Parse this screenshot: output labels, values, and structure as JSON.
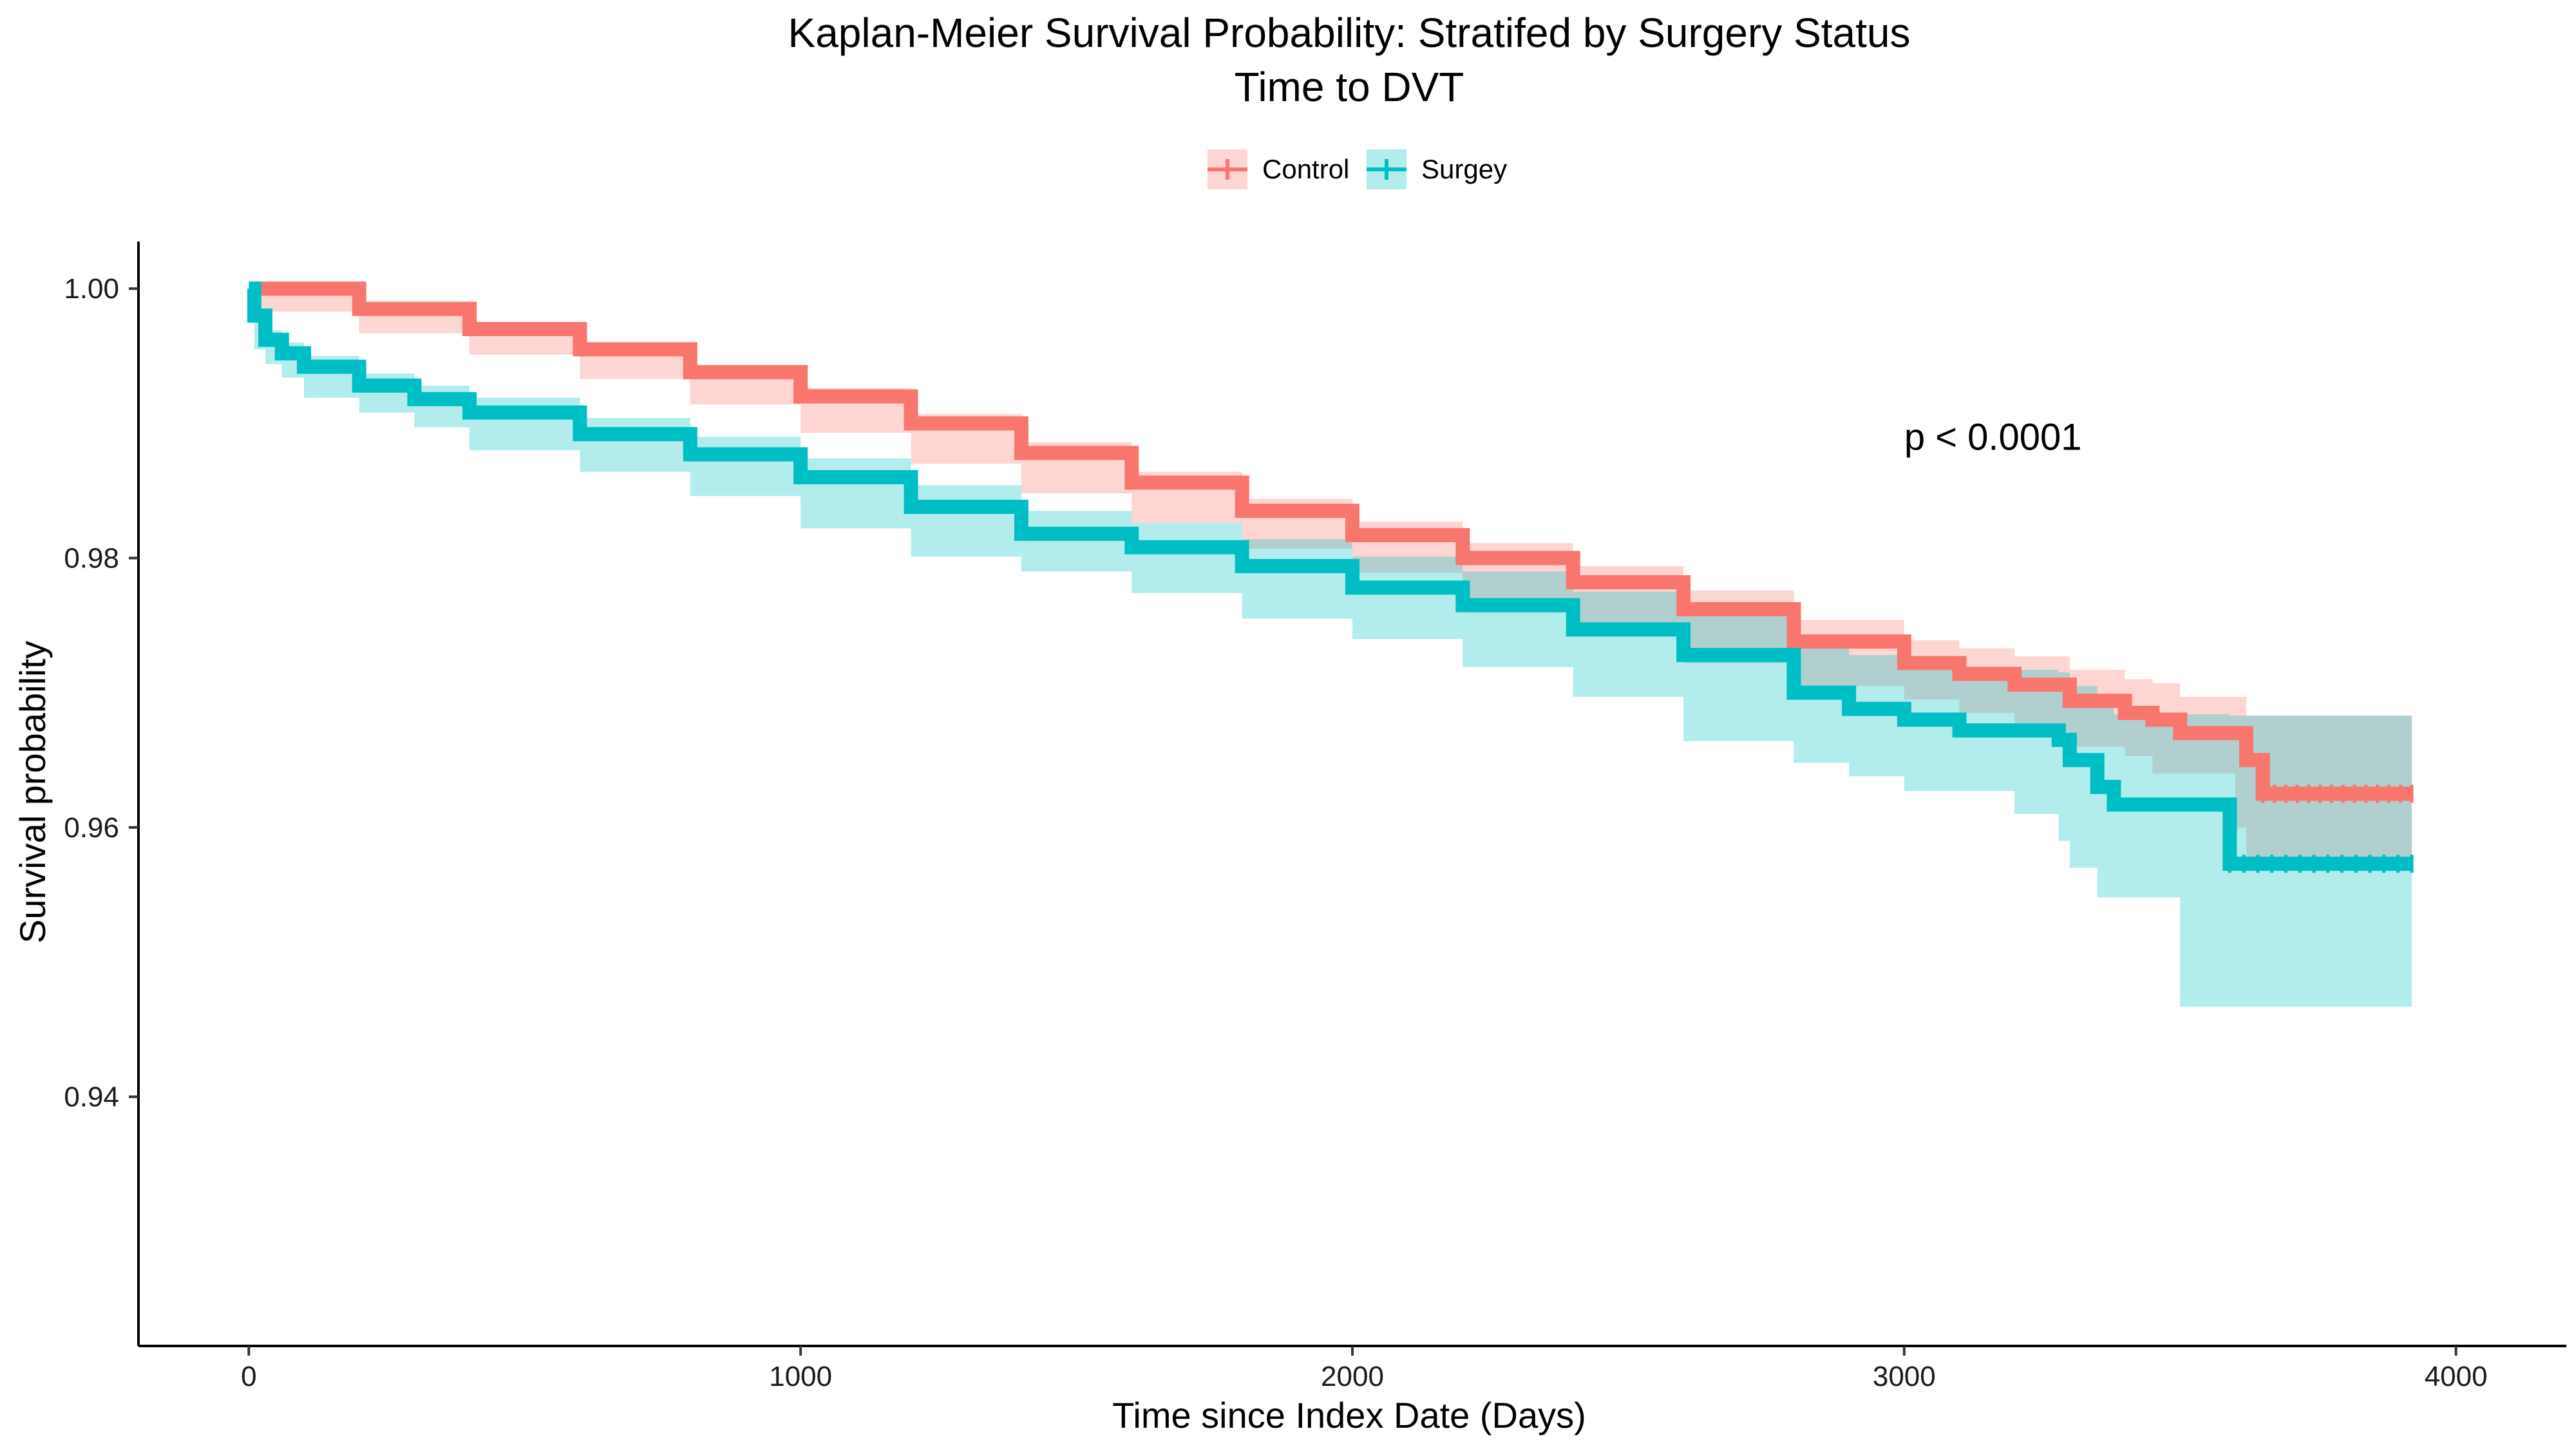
{
  "chart_data": {
    "type": "line",
    "title": "Kaplan-Meier Survival Probability: Stratifed by Surgery Status",
    "subtitle": "Time to DVT",
    "xlabel": "Time since Index Date (Days)",
    "ylabel": "Survival probability",
    "xlim": [
      -200,
      4200
    ],
    "ylim": [
      0.9215,
      1.0035
    ],
    "x_ticks": [
      0,
      1000,
      2000,
      3000,
      4000
    ],
    "x_tick_labels": [
      "0",
      "1000",
      "2000",
      "3000",
      "4000"
    ],
    "y_ticks": [
      0.94,
      0.96,
      0.98,
      1.0
    ],
    "y_tick_labels": [
      "0.94",
      "0.96",
      "0.98",
      "1.00"
    ],
    "grid": false,
    "legend_position": "top",
    "annotation": {
      "text": "p < 0.0001",
      "x": 3000,
      "y": 0.989
    },
    "series": [
      {
        "name": "Control",
        "color": "#F8766D",
        "band_color": "#F8766D",
        "x": [
          0,
          200,
          400,
          600,
          800,
          1000,
          1200,
          1400,
          1600,
          1800,
          2000,
          2200,
          2400,
          2600,
          2800,
          3000,
          3100,
          3200,
          3300,
          3400,
          3450,
          3500,
          3600,
          3620,
          3650,
          3920
        ],
        "y": [
          1.0,
          0.9985,
          0.997,
          0.9955,
          0.9938,
          0.992,
          0.99,
          0.9878,
          0.9856,
          0.9835,
          0.9817,
          0.98,
          0.9782,
          0.9762,
          0.9738,
          0.9722,
          0.9714,
          0.9706,
          0.9694,
          0.9685,
          0.968,
          0.967,
          0.967,
          0.965,
          0.9625,
          0.9625
        ],
        "lower": [
          1.0,
          0.9983,
          0.9967,
          0.9951,
          0.9933,
          0.9914,
          0.9893,
          0.987,
          0.9848,
          0.9826,
          0.9807,
          0.9789,
          0.977,
          0.9748,
          0.9722,
          0.9705,
          0.9695,
          0.9685,
          0.9671,
          0.966,
          0.9653,
          0.964,
          0.964,
          0.96,
          0.957,
          0.957
        ],
        "upper": [
          1.0,
          0.9987,
          0.9973,
          0.9959,
          0.9943,
          0.9926,
          0.9907,
          0.9886,
          0.9864,
          0.9844,
          0.9827,
          0.9811,
          0.9794,
          0.9776,
          0.9754,
          0.9739,
          0.9733,
          0.9727,
          0.9717,
          0.971,
          0.9707,
          0.9697,
          0.9697,
          0.9683,
          0.9683,
          0.9683
        ]
      },
      {
        "name": "Surgey",
        "color": "#00BFC4",
        "band_color": "#00BFC4",
        "x": [
          0,
          10,
          30,
          60,
          100,
          200,
          300,
          400,
          600,
          800,
          1000,
          1200,
          1400,
          1600,
          1800,
          2000,
          2200,
          2400,
          2600,
          2800,
          2900,
          3000,
          3100,
          3200,
          3280,
          3300,
          3350,
          3380,
          3400,
          3500,
          3590,
          3920
        ],
        "y": [
          1.0,
          0.998,
          0.9962,
          0.9952,
          0.9942,
          0.9928,
          0.9918,
          0.9908,
          0.9892,
          0.9877,
          0.986,
          0.9838,
          0.9818,
          0.9808,
          0.9794,
          0.9778,
          0.9765,
          0.9747,
          0.9728,
          0.97,
          0.9688,
          0.968,
          0.9672,
          0.9672,
          0.9665,
          0.965,
          0.963,
          0.9617,
          0.9617,
          0.9617,
          0.9573,
          0.9573
        ],
        "lower": [
          1.0,
          0.9975,
          0.9955,
          0.9944,
          0.9934,
          0.9919,
          0.9908,
          0.9897,
          0.988,
          0.9864,
          0.9846,
          0.9822,
          0.9801,
          0.979,
          0.9774,
          0.9755,
          0.974,
          0.9719,
          0.9697,
          0.9664,
          0.9648,
          0.9638,
          0.9627,
          0.9627,
          0.961,
          0.959,
          0.957,
          0.9548,
          0.9548,
          0.9548,
          0.9467,
          0.9467
        ],
        "upper": [
          1.0,
          0.9985,
          0.9969,
          0.996,
          0.995,
          0.9937,
          0.9928,
          0.9919,
          0.9904,
          0.989,
          0.9874,
          0.9854,
          0.9835,
          0.9826,
          0.9814,
          0.9801,
          0.979,
          0.9775,
          0.9759,
          0.9736,
          0.9728,
          0.9722,
          0.9717,
          0.9717,
          0.9715,
          0.9705,
          0.9695,
          0.9684,
          0.9684,
          0.9684,
          0.9683,
          0.9683
        ]
      }
    ]
  }
}
